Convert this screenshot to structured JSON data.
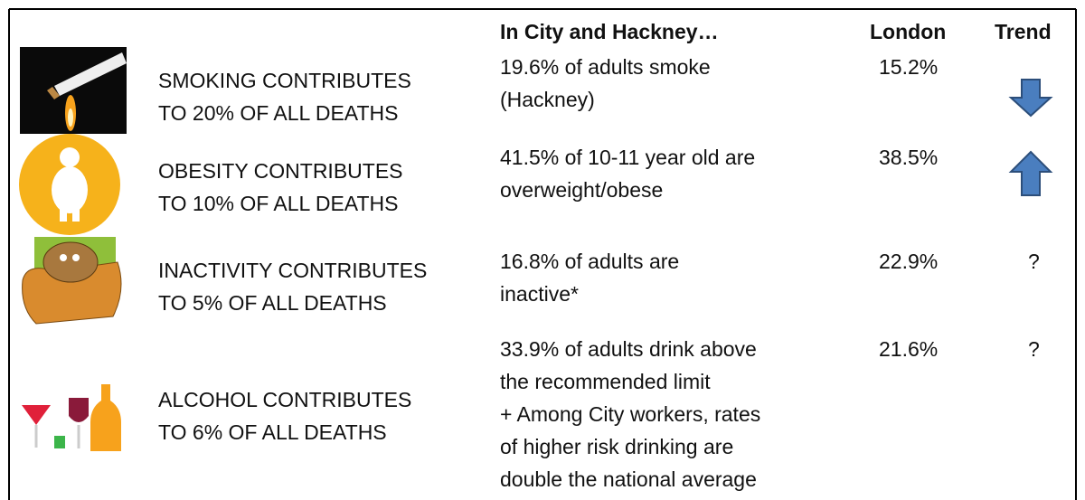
{
  "header": {
    "city": "In City and Hackney…",
    "london": "London",
    "trend": "Trend"
  },
  "rows": [
    {
      "label": [
        "SMOKING CONTRIBUTES",
        "TO 20% OF ALL DEATHS"
      ],
      "city": [
        "19.6% of adults smoke",
        "(Hackney)"
      ],
      "london": "15.2%"
    },
    {
      "label": [
        "OBESITY CONTRIBUTES",
        "TO 10% OF ALL DEATHS"
      ],
      "city": [
        "41.5% of 10-11 year old are",
        "overweight/obese"
      ],
      "london": "38.5%"
    },
    {
      "label": [
        "INACTIVITY CONTRIBUTES",
        "TO 5% OF ALL DEATHS"
      ],
      "city": [
        "16.8% of adults are",
        "inactive*"
      ],
      "london": "22.9%",
      "trend": "?"
    },
    {
      "label": [
        "ALCOHOL CONTRIBUTES",
        "TO 6% OF ALL DEATHS"
      ],
      "city": [
        "33.9% of adults drink above",
        "the recommended limit",
        "+ Among City workers, rates",
        "of higher risk drinking are",
        "double the national average"
      ],
      "london": "21.6%",
      "trend": "?"
    }
  ]
}
